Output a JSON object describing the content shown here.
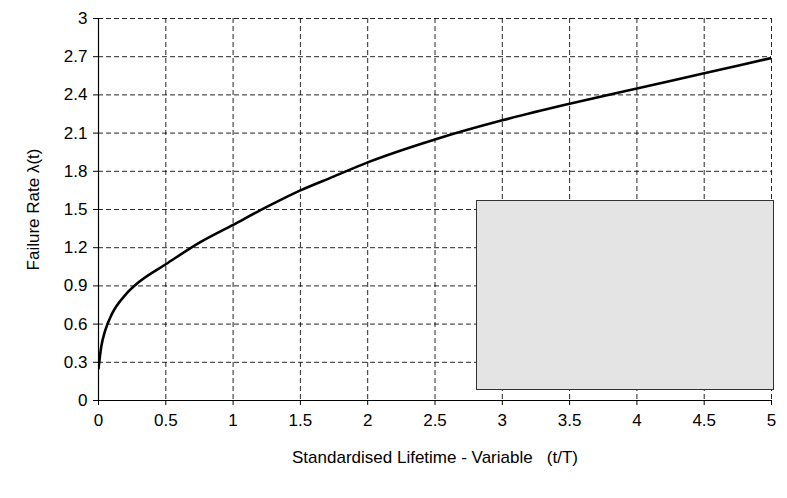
{
  "chart_data": {
    "type": "line",
    "x_label": "Standardised Lifetime - Variable   (t/T)",
    "y_label": "Failure Rate λ(t)",
    "x": [
      0,
      0.02,
      0.05,
      0.1,
      0.2,
      0.3,
      0.5,
      0.75,
      1,
      1.25,
      1.5,
      1.75,
      2,
      2.5,
      3,
      3.5,
      4,
      4.5,
      5
    ],
    "values": [
      0.25,
      0.42,
      0.55,
      0.68,
      0.83,
      0.93,
      1.07,
      1.24,
      1.38,
      1.52,
      1.65,
      1.76,
      1.87,
      2.05,
      2.2,
      2.33,
      2.45,
      2.57,
      2.69
    ],
    "color": "#000000",
    "xlim": [
      0,
      5
    ],
    "xticks": [
      0,
      0.5,
      1,
      1.5,
      2,
      2.5,
      3,
      3.5,
      4,
      4.5,
      5
    ],
    "ylim": [
      0,
      3
    ],
    "yticks": [
      0,
      0.3,
      0.6,
      0.9,
      1.2,
      1.5,
      1.8,
      2.1,
      2.4,
      2.7,
      3
    ],
    "grid": true
  }
}
